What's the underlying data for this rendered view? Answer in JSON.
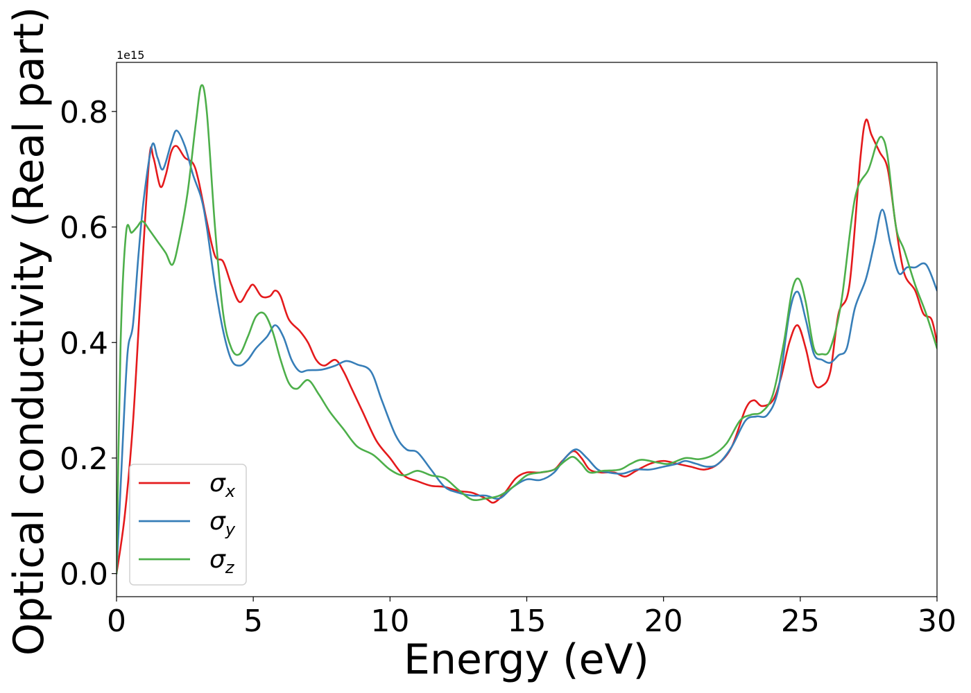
{
  "chart_data": {
    "type": "line",
    "xlabel": "Energy (eV)",
    "ylabel": "Optical conductivity (Real part)",
    "offset_text": "1e15",
    "xlim": [
      0,
      30
    ],
    "ylim": [
      -0.04,
      0.885
    ],
    "xticks": [
      0,
      5,
      10,
      15,
      20,
      25,
      30
    ],
    "yticks": [
      0.0,
      0.2,
      0.4,
      0.6,
      0.8
    ],
    "xtick_labels": [
      "0",
      "5",
      "10",
      "15",
      "20",
      "25",
      "30"
    ],
    "ytick_labels": [
      "0.0",
      "0.2",
      "0.4",
      "0.6",
      "0.8"
    ],
    "grid": false,
    "legend_position": "lower-left",
    "series": [
      {
        "name": "σx",
        "symbol": "σ",
        "subscript": "x",
        "color": "#e41a1c",
        "points": [
          [
            0,
            0
          ],
          [
            0.3,
            0.1
          ],
          [
            0.6,
            0.26
          ],
          [
            0.9,
            0.5
          ],
          [
            1.2,
            0.72
          ],
          [
            1.35,
            0.72
          ],
          [
            1.6,
            0.67
          ],
          [
            1.8,
            0.69
          ],
          [
            2.0,
            0.73
          ],
          [
            2.2,
            0.74
          ],
          [
            2.5,
            0.72
          ],
          [
            2.8,
            0.71
          ],
          [
            3.0,
            0.68
          ],
          [
            3.3,
            0.61
          ],
          [
            3.6,
            0.55
          ],
          [
            3.9,
            0.54
          ],
          [
            4.2,
            0.5
          ],
          [
            4.5,
            0.47
          ],
          [
            4.8,
            0.49
          ],
          [
            5.0,
            0.5
          ],
          [
            5.3,
            0.48
          ],
          [
            5.6,
            0.48
          ],
          [
            5.8,
            0.49
          ],
          [
            6.0,
            0.48
          ],
          [
            6.3,
            0.44
          ],
          [
            6.7,
            0.42
          ],
          [
            7.0,
            0.4
          ],
          [
            7.3,
            0.37
          ],
          [
            7.6,
            0.36
          ],
          [
            8.0,
            0.37
          ],
          [
            8.3,
            0.35
          ],
          [
            8.6,
            0.32
          ],
          [
            9.0,
            0.28
          ],
          [
            9.5,
            0.23
          ],
          [
            10.0,
            0.2
          ],
          [
            10.5,
            0.17
          ],
          [
            11.0,
            0.16
          ],
          [
            11.5,
            0.152
          ],
          [
            12.0,
            0.15
          ],
          [
            12.5,
            0.143
          ],
          [
            13.0,
            0.14
          ],
          [
            13.5,
            0.13
          ],
          [
            13.8,
            0.123
          ],
          [
            14.2,
            0.14
          ],
          [
            14.6,
            0.165
          ],
          [
            15.0,
            0.175
          ],
          [
            15.5,
            0.175
          ],
          [
            16.0,
            0.18
          ],
          [
            16.3,
            0.195
          ],
          [
            16.7,
            0.212
          ],
          [
            17.0,
            0.2
          ],
          [
            17.3,
            0.18
          ],
          [
            17.7,
            0.175
          ],
          [
            18.2,
            0.175
          ],
          [
            18.6,
            0.168
          ],
          [
            19.0,
            0.178
          ],
          [
            19.5,
            0.19
          ],
          [
            20.0,
            0.195
          ],
          [
            20.5,
            0.19
          ],
          [
            21.0,
            0.185
          ],
          [
            21.5,
            0.18
          ],
          [
            22.0,
            0.19
          ],
          [
            22.5,
            0.22
          ],
          [
            23.0,
            0.285
          ],
          [
            23.3,
            0.3
          ],
          [
            23.6,
            0.29
          ],
          [
            24.0,
            0.3
          ],
          [
            24.3,
            0.34
          ],
          [
            24.6,
            0.4
          ],
          [
            24.9,
            0.43
          ],
          [
            25.2,
            0.39
          ],
          [
            25.5,
            0.33
          ],
          [
            25.8,
            0.325
          ],
          [
            26.1,
            0.35
          ],
          [
            26.4,
            0.45
          ],
          [
            26.8,
            0.5
          ],
          [
            27.2,
            0.72
          ],
          [
            27.4,
            0.785
          ],
          [
            27.6,
            0.76
          ],
          [
            27.9,
            0.73
          ],
          [
            28.2,
            0.7
          ],
          [
            28.5,
            0.6
          ],
          [
            28.8,
            0.52
          ],
          [
            29.2,
            0.49
          ],
          [
            29.5,
            0.45
          ],
          [
            29.8,
            0.44
          ],
          [
            30.0,
            0.4
          ]
        ]
      },
      {
        "name": "σy",
        "symbol": "σ",
        "subscript": "y",
        "color": "#377eb8",
        "points": [
          [
            0,
            0
          ],
          [
            0.2,
            0.2
          ],
          [
            0.4,
            0.38
          ],
          [
            0.6,
            0.43
          ],
          [
            0.8,
            0.55
          ],
          [
            1.0,
            0.65
          ],
          [
            1.3,
            0.742
          ],
          [
            1.5,
            0.72
          ],
          [
            1.7,
            0.7
          ],
          [
            2.0,
            0.745
          ],
          [
            2.2,
            0.767
          ],
          [
            2.5,
            0.74
          ],
          [
            2.8,
            0.69
          ],
          [
            3.1,
            0.65
          ],
          [
            3.3,
            0.6
          ],
          [
            3.6,
            0.5
          ],
          [
            3.9,
            0.42
          ],
          [
            4.2,
            0.37
          ],
          [
            4.5,
            0.36
          ],
          [
            4.8,
            0.37
          ],
          [
            5.1,
            0.39
          ],
          [
            5.5,
            0.41
          ],
          [
            5.8,
            0.43
          ],
          [
            6.1,
            0.41
          ],
          [
            6.4,
            0.37
          ],
          [
            6.7,
            0.35
          ],
          [
            7.0,
            0.352
          ],
          [
            7.5,
            0.353
          ],
          [
            8.0,
            0.36
          ],
          [
            8.4,
            0.368
          ],
          [
            8.8,
            0.362
          ],
          [
            9.3,
            0.35
          ],
          [
            9.7,
            0.3
          ],
          [
            10.2,
            0.24
          ],
          [
            10.6,
            0.215
          ],
          [
            11.0,
            0.21
          ],
          [
            11.5,
            0.18
          ],
          [
            12.0,
            0.15
          ],
          [
            12.5,
            0.14
          ],
          [
            13.0,
            0.135
          ],
          [
            13.5,
            0.135
          ],
          [
            14.0,
            0.13
          ],
          [
            14.5,
            0.15
          ],
          [
            15.0,
            0.163
          ],
          [
            15.5,
            0.162
          ],
          [
            16.0,
            0.175
          ],
          [
            16.4,
            0.2
          ],
          [
            16.8,
            0.215
          ],
          [
            17.2,
            0.2
          ],
          [
            17.6,
            0.18
          ],
          [
            18.0,
            0.175
          ],
          [
            18.5,
            0.173
          ],
          [
            19.0,
            0.18
          ],
          [
            19.5,
            0.18
          ],
          [
            20.0,
            0.185
          ],
          [
            20.5,
            0.19
          ],
          [
            20.8,
            0.195
          ],
          [
            21.2,
            0.19
          ],
          [
            21.6,
            0.185
          ],
          [
            22.0,
            0.19
          ],
          [
            22.5,
            0.22
          ],
          [
            23.0,
            0.265
          ],
          [
            23.4,
            0.272
          ],
          [
            23.8,
            0.275
          ],
          [
            24.2,
            0.32
          ],
          [
            24.6,
            0.45
          ],
          [
            24.9,
            0.488
          ],
          [
            25.2,
            0.44
          ],
          [
            25.5,
            0.38
          ],
          [
            25.8,
            0.37
          ],
          [
            26.1,
            0.365
          ],
          [
            26.4,
            0.378
          ],
          [
            26.7,
            0.39
          ],
          [
            27.0,
            0.46
          ],
          [
            27.4,
            0.51
          ],
          [
            27.7,
            0.57
          ],
          [
            28.0,
            0.63
          ],
          [
            28.3,
            0.57
          ],
          [
            28.6,
            0.52
          ],
          [
            28.9,
            0.53
          ],
          [
            29.2,
            0.53
          ],
          [
            29.6,
            0.535
          ],
          [
            30.0,
            0.49
          ]
        ]
      },
      {
        "name": "σz",
        "symbol": "σ",
        "subscript": "z",
        "color": "#4daf4a",
        "points": [
          [
            0,
            0
          ],
          [
            0.15,
            0.4
          ],
          [
            0.35,
            0.59
          ],
          [
            0.55,
            0.59
          ],
          [
            0.75,
            0.6
          ],
          [
            0.95,
            0.61
          ],
          [
            1.2,
            0.595
          ],
          [
            1.5,
            0.575
          ],
          [
            1.8,
            0.555
          ],
          [
            2.05,
            0.535
          ],
          [
            2.3,
            0.58
          ],
          [
            2.6,
            0.66
          ],
          [
            2.9,
            0.78
          ],
          [
            3.1,
            0.845
          ],
          [
            3.3,
            0.8
          ],
          [
            3.6,
            0.6
          ],
          [
            3.9,
            0.45
          ],
          [
            4.2,
            0.39
          ],
          [
            4.5,
            0.38
          ],
          [
            4.8,
            0.41
          ],
          [
            5.1,
            0.445
          ],
          [
            5.4,
            0.45
          ],
          [
            5.7,
            0.42
          ],
          [
            6.0,
            0.37
          ],
          [
            6.3,
            0.33
          ],
          [
            6.6,
            0.32
          ],
          [
            7.0,
            0.335
          ],
          [
            7.4,
            0.31
          ],
          [
            7.8,
            0.28
          ],
          [
            8.3,
            0.25
          ],
          [
            8.8,
            0.22
          ],
          [
            9.4,
            0.205
          ],
          [
            10.0,
            0.18
          ],
          [
            10.5,
            0.17
          ],
          [
            11.0,
            0.178
          ],
          [
            11.5,
            0.17
          ],
          [
            12.0,
            0.165
          ],
          [
            12.5,
            0.145
          ],
          [
            13.0,
            0.128
          ],
          [
            13.5,
            0.13
          ],
          [
            14.0,
            0.135
          ],
          [
            14.5,
            0.15
          ],
          [
            15.0,
            0.17
          ],
          [
            15.5,
            0.175
          ],
          [
            16.0,
            0.18
          ],
          [
            16.4,
            0.195
          ],
          [
            16.7,
            0.202
          ],
          [
            17.0,
            0.19
          ],
          [
            17.3,
            0.175
          ],
          [
            17.8,
            0.178
          ],
          [
            18.4,
            0.18
          ],
          [
            18.8,
            0.19
          ],
          [
            19.2,
            0.197
          ],
          [
            19.8,
            0.192
          ],
          [
            20.2,
            0.19
          ],
          [
            20.8,
            0.2
          ],
          [
            21.3,
            0.198
          ],
          [
            21.8,
            0.205
          ],
          [
            22.3,
            0.225
          ],
          [
            22.8,
            0.265
          ],
          [
            23.2,
            0.275
          ],
          [
            23.6,
            0.28
          ],
          [
            24.0,
            0.31
          ],
          [
            24.4,
            0.4
          ],
          [
            24.7,
            0.49
          ],
          [
            24.95,
            0.51
          ],
          [
            25.2,
            0.47
          ],
          [
            25.5,
            0.39
          ],
          [
            25.8,
            0.38
          ],
          [
            26.1,
            0.39
          ],
          [
            26.5,
            0.47
          ],
          [
            27.0,
            0.65
          ],
          [
            27.5,
            0.7
          ],
          [
            27.8,
            0.745
          ],
          [
            28.0,
            0.755
          ],
          [
            28.2,
            0.72
          ],
          [
            28.5,
            0.6
          ],
          [
            28.8,
            0.56
          ],
          [
            29.2,
            0.5
          ],
          [
            29.6,
            0.45
          ],
          [
            30.0,
            0.39
          ]
        ]
      }
    ]
  }
}
